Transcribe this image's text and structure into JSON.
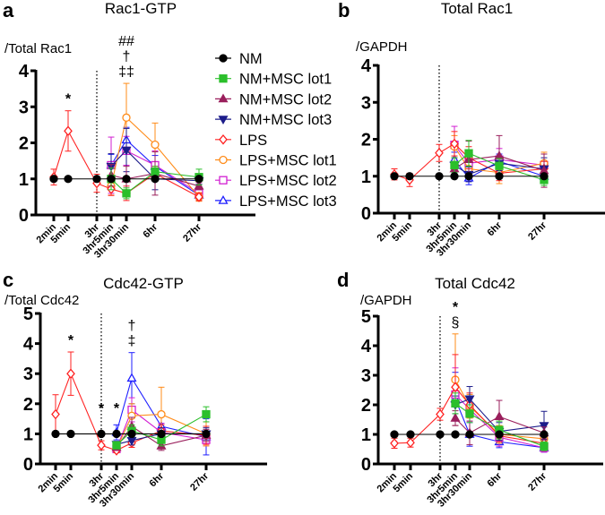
{
  "legend": [
    {
      "name": "NM",
      "color": "#000000",
      "marker": "circle",
      "filled": true
    },
    {
      "name": "NM+MSC lot1",
      "color": "#2bbf2b",
      "marker": "square",
      "filled": true
    },
    {
      "name": "NM+MSC lot2",
      "color": "#9a1f5c",
      "marker": "triangle-up",
      "filled": true
    },
    {
      "name": "NM+MSC lot3",
      "color": "#1c1c8a",
      "marker": "triangle-down",
      "filled": true
    },
    {
      "name": "LPS",
      "color": "#ff2222",
      "marker": "diamond",
      "filled": false
    },
    {
      "name": "LPS+MSC lot1",
      "color": "#ff8c1a",
      "marker": "circle",
      "filled": false
    },
    {
      "name": "LPS+MSC lot2",
      "color": "#d21fd2",
      "marker": "square",
      "filled": false
    },
    {
      "name": "LPS+MSC lot3",
      "color": "#1f1fff",
      "marker": "triangle-up",
      "filled": false
    }
  ],
  "chart_data": [
    {
      "panel": "a",
      "type": "line",
      "title": "Rac1-GTP",
      "ylabel": "/Total Rac1",
      "ylim": [
        0,
        4
      ],
      "yticks": [
        0,
        1,
        2,
        3,
        4
      ],
      "categories": [
        "2min",
        "5min",
        "3hr",
        "3hr5min",
        "3hr30min",
        "6hr",
        "27hr"
      ],
      "dotted_line_at": "3hr",
      "annotations": [
        {
          "at": "5min",
          "lines": [
            "*"
          ]
        },
        {
          "at": "3hr30min",
          "lines": [
            "##",
            "†",
            "‡‡"
          ]
        }
      ],
      "series": [
        {
          "name": "NM",
          "values": [
            1,
            1,
            1,
            1,
            1,
            1,
            1
          ],
          "err": [
            0,
            0,
            0,
            0,
            0,
            0,
            0
          ]
        },
        {
          "name": "NM+MSC lot1",
          "values": [
            null,
            null,
            null,
            1.0,
            0.6,
            1.2,
            1.05
          ],
          "err": [
            0,
            0,
            0,
            0.3,
            0.15,
            0.15,
            0.22
          ]
        },
        {
          "name": "NM+MSC lot2",
          "values": [
            null,
            null,
            null,
            1.1,
            1.0,
            1.15,
            0.8
          ],
          "err": [
            0,
            0,
            0,
            0.3,
            0.35,
            0.6,
            0.1
          ]
        },
        {
          "name": "NM+MSC lot3",
          "values": [
            null,
            null,
            null,
            1.35,
            1.8,
            1.0,
            0.95
          ],
          "err": [
            0,
            0,
            0,
            0.35,
            0.6,
            0.3,
            0.1
          ]
        },
        {
          "name": "LPS",
          "values": [
            1.05,
            2.33,
            0.88,
            0.72,
            0.6,
            1.15,
            0.5
          ],
          "err": [
            0.22,
            0.56,
            0.25,
            0.18,
            0.2,
            0.2,
            0.1
          ]
        },
        {
          "name": "LPS+MSC lot1",
          "values": [
            null,
            null,
            null,
            0.8,
            2.7,
            1.95,
            0.5
          ],
          "err": [
            0,
            0,
            0,
            0.25,
            0.95,
            0.6,
            0.12
          ]
        },
        {
          "name": "LPS+MSC lot2",
          "values": [
            null,
            null,
            null,
            1.38,
            1.78,
            1.38,
            0.6
          ],
          "err": [
            0,
            0,
            0,
            0.78,
            0.4,
            0.4,
            0.15
          ]
        },
        {
          "name": "LPS+MSC lot3",
          "values": [
            null,
            null,
            null,
            1.38,
            2.08,
            1.35,
            0.55
          ],
          "err": [
            0,
            0,
            0,
            0.3,
            0.35,
            0.3,
            0.12
          ]
        }
      ]
    },
    {
      "panel": "b",
      "type": "line",
      "title": "Total Rac1",
      "ylabel": "/GAPDH",
      "ylim": [
        0,
        4
      ],
      "yticks": [
        0,
        1,
        2,
        3,
        4
      ],
      "categories": [
        "2min",
        "5min",
        "3hr",
        "3hr5min",
        "3hr30min",
        "6hr",
        "27hr"
      ],
      "dotted_line_at": "3hr",
      "annotations": [],
      "series": [
        {
          "name": "NM",
          "values": [
            1,
            1,
            1,
            1,
            1,
            1,
            1
          ],
          "err": [
            0,
            0,
            0,
            0,
            0,
            0,
            0
          ]
        },
        {
          "name": "NM+MSC lot1",
          "values": [
            null,
            null,
            null,
            1.3,
            1.62,
            1.28,
            0.9
          ],
          "err": [
            0,
            0,
            0,
            0.2,
            0.35,
            0.2,
            0.15
          ]
        },
        {
          "name": "NM+MSC lot2",
          "values": [
            null,
            null,
            null,
            1.2,
            1.45,
            1.55,
            1.15
          ],
          "err": [
            0,
            0,
            0,
            0.2,
            0.5,
            0.55,
            0.45
          ]
        },
        {
          "name": "NM+MSC lot3",
          "values": [
            null,
            null,
            null,
            1.3,
            1.05,
            1.35,
            1.2
          ],
          "err": [
            0,
            0,
            0,
            0.2,
            0.2,
            0.2,
            0.3
          ]
        },
        {
          "name": "LPS",
          "values": [
            1.05,
            0.9,
            1.63,
            1.88,
            1.5,
            1.08,
            1.2
          ],
          "err": [
            0.15,
            0.18,
            0.23,
            0.33,
            0.3,
            0.2,
            0.2
          ]
        },
        {
          "name": "LPS+MSC lot1",
          "values": [
            null,
            null,
            null,
            1.8,
            1.2,
            1.1,
            1.35
          ],
          "err": [
            0,
            0,
            0,
            0.3,
            0.25,
            0.3,
            0.3
          ]
        },
        {
          "name": "LPS+MSC lot2",
          "values": [
            null,
            null,
            null,
            1.85,
            1.35,
            1.45,
            1.3
          ],
          "err": [
            0,
            0,
            0,
            0.5,
            0.3,
            0.3,
            0.3
          ]
        },
        {
          "name": "LPS+MSC lot3",
          "values": [
            null,
            null,
            null,
            1.45,
            0.95,
            1.4,
            1.0
          ],
          "err": [
            0,
            0,
            0,
            0.2,
            0.18,
            0.2,
            0.2
          ]
        }
      ]
    },
    {
      "panel": "c",
      "type": "line",
      "title": "Cdc42-GTP",
      "ylabel": "/Total Cdc42",
      "ylim": [
        0,
        5
      ],
      "yticks": [
        0,
        1,
        2,
        3,
        4,
        5
      ],
      "categories": [
        "2min",
        "5min",
        "3hr",
        "3hr5min",
        "3hr30min",
        "6hr",
        "27hr"
      ],
      "dotted_line_at": "3hr",
      "annotations": [
        {
          "at": "5min",
          "lines": [
            "*"
          ]
        },
        {
          "at": "3hr",
          "lines": [
            "*"
          ]
        },
        {
          "at": "3hr5min",
          "lines": [
            "*"
          ]
        },
        {
          "at": "3hr30min",
          "lines": [
            "†",
            "‡"
          ]
        }
      ],
      "series": [
        {
          "name": "NM",
          "values": [
            1,
            1,
            1,
            1,
            1,
            1,
            1
          ],
          "err": [
            0,
            0,
            0,
            0,
            0,
            0,
            0
          ]
        },
        {
          "name": "NM+MSC lot1",
          "values": [
            null,
            null,
            null,
            0.62,
            1.1,
            0.8,
            1.65
          ],
          "err": [
            0,
            0,
            0,
            0.1,
            0.2,
            0.2,
            0.25
          ]
        },
        {
          "name": "NM+MSC lot2",
          "values": [
            null,
            null,
            null,
            0.55,
            1.25,
            0.6,
            0.95
          ],
          "err": [
            0,
            0,
            0,
            0.1,
            0.3,
            0.15,
            0.2
          ]
        },
        {
          "name": "NM+MSC lot3",
          "values": [
            null,
            null,
            null,
            0.65,
            0.78,
            1.0,
            1.0
          ],
          "err": [
            0,
            0,
            0,
            0.1,
            0.15,
            0.2,
            0.2
          ]
        },
        {
          "name": "LPS",
          "values": [
            1.65,
            3.0,
            0.62,
            0.45,
            0.7,
            1.1,
            0.95
          ],
          "err": [
            0.65,
            0.72,
            0.15,
            0.08,
            0.15,
            0.2,
            0.3
          ]
        },
        {
          "name": "LPS+MSC lot1",
          "values": [
            null,
            null,
            null,
            0.5,
            1.6,
            1.65,
            1.0
          ],
          "err": [
            0,
            0,
            0,
            0.1,
            0.4,
            0.9,
            0.4
          ]
        },
        {
          "name": "LPS+MSC lot2",
          "values": [
            null,
            null,
            null,
            0.5,
            1.8,
            1.05,
            0.8
          ],
          "err": [
            0,
            0,
            0,
            0.1,
            0.4,
            0.3,
            0.2
          ]
        },
        {
          "name": "LPS+MSC lot3",
          "values": [
            null,
            null,
            null,
            1.05,
            2.85,
            1.25,
            0.9
          ],
          "err": [
            0,
            0,
            0,
            0.25,
            0.85,
            0.1,
            0.6
          ]
        }
      ]
    },
    {
      "panel": "d",
      "type": "line",
      "title": "Total Cdc42",
      "ylabel": "/GAPDH",
      "ylim": [
        0,
        5
      ],
      "yticks": [
        0,
        1,
        2,
        3,
        4,
        5
      ],
      "categories": [
        "2min",
        "5min",
        "3hr",
        "3hr5min",
        "3hr30min",
        "6hr",
        "27hr"
      ],
      "dotted_line_at": "3hr",
      "annotations": [
        {
          "at": "3hr5min",
          "lines": [
            "*",
            "§"
          ]
        }
      ],
      "series": [
        {
          "name": "NM",
          "values": [
            1,
            1,
            1,
            1,
            1,
            1,
            1
          ],
          "err": [
            0,
            0,
            0,
            0,
            0,
            0,
            0
          ]
        },
        {
          "name": "NM+MSC lot1",
          "values": [
            null,
            null,
            null,
            2.05,
            1.7,
            1.15,
            0.6
          ],
          "err": [
            0,
            0,
            0,
            0.35,
            0.3,
            0.3,
            0.15
          ]
        },
        {
          "name": "NM+MSC lot2",
          "values": [
            null,
            null,
            null,
            1.55,
            1.05,
            1.6,
            1.05
          ],
          "err": [
            0,
            0,
            0,
            0.25,
            0.4,
            0.55,
            0.2
          ]
        },
        {
          "name": "NM+MSC lot3",
          "values": [
            null,
            null,
            null,
            2.0,
            2.2,
            1.1,
            1.3
          ],
          "err": [
            0,
            0,
            0,
            0.3,
            0.42,
            0.3,
            0.48
          ]
        },
        {
          "name": "LPS",
          "values": [
            0.7,
            0.72,
            1.68,
            2.6,
            2.0,
            0.95,
            0.7
          ],
          "err": [
            0.17,
            0.15,
            0.2,
            1.1,
            0.4,
            0.2,
            0.15
          ]
        },
        {
          "name": "LPS+MSC lot1",
          "values": [
            null,
            null,
            null,
            2.85,
            1.95,
            1.0,
            0.85
          ],
          "err": [
            0,
            0,
            0,
            1.55,
            0.4,
            0.3,
            0.2
          ]
        },
        {
          "name": "LPS+MSC lot2",
          "values": [
            null,
            null,
            null,
            2.35,
            1.85,
            0.9,
            0.55
          ],
          "err": [
            0,
            0,
            0,
            0.9,
            0.4,
            0.3,
            0.15
          ]
        },
        {
          "name": "LPS+MSC lot3",
          "values": [
            null,
            null,
            null,
            2.2,
            1.0,
            0.75,
            0.55
          ],
          "err": [
            0,
            0,
            0,
            0.9,
            0.4,
            0.2,
            0.15
          ]
        }
      ]
    }
  ]
}
